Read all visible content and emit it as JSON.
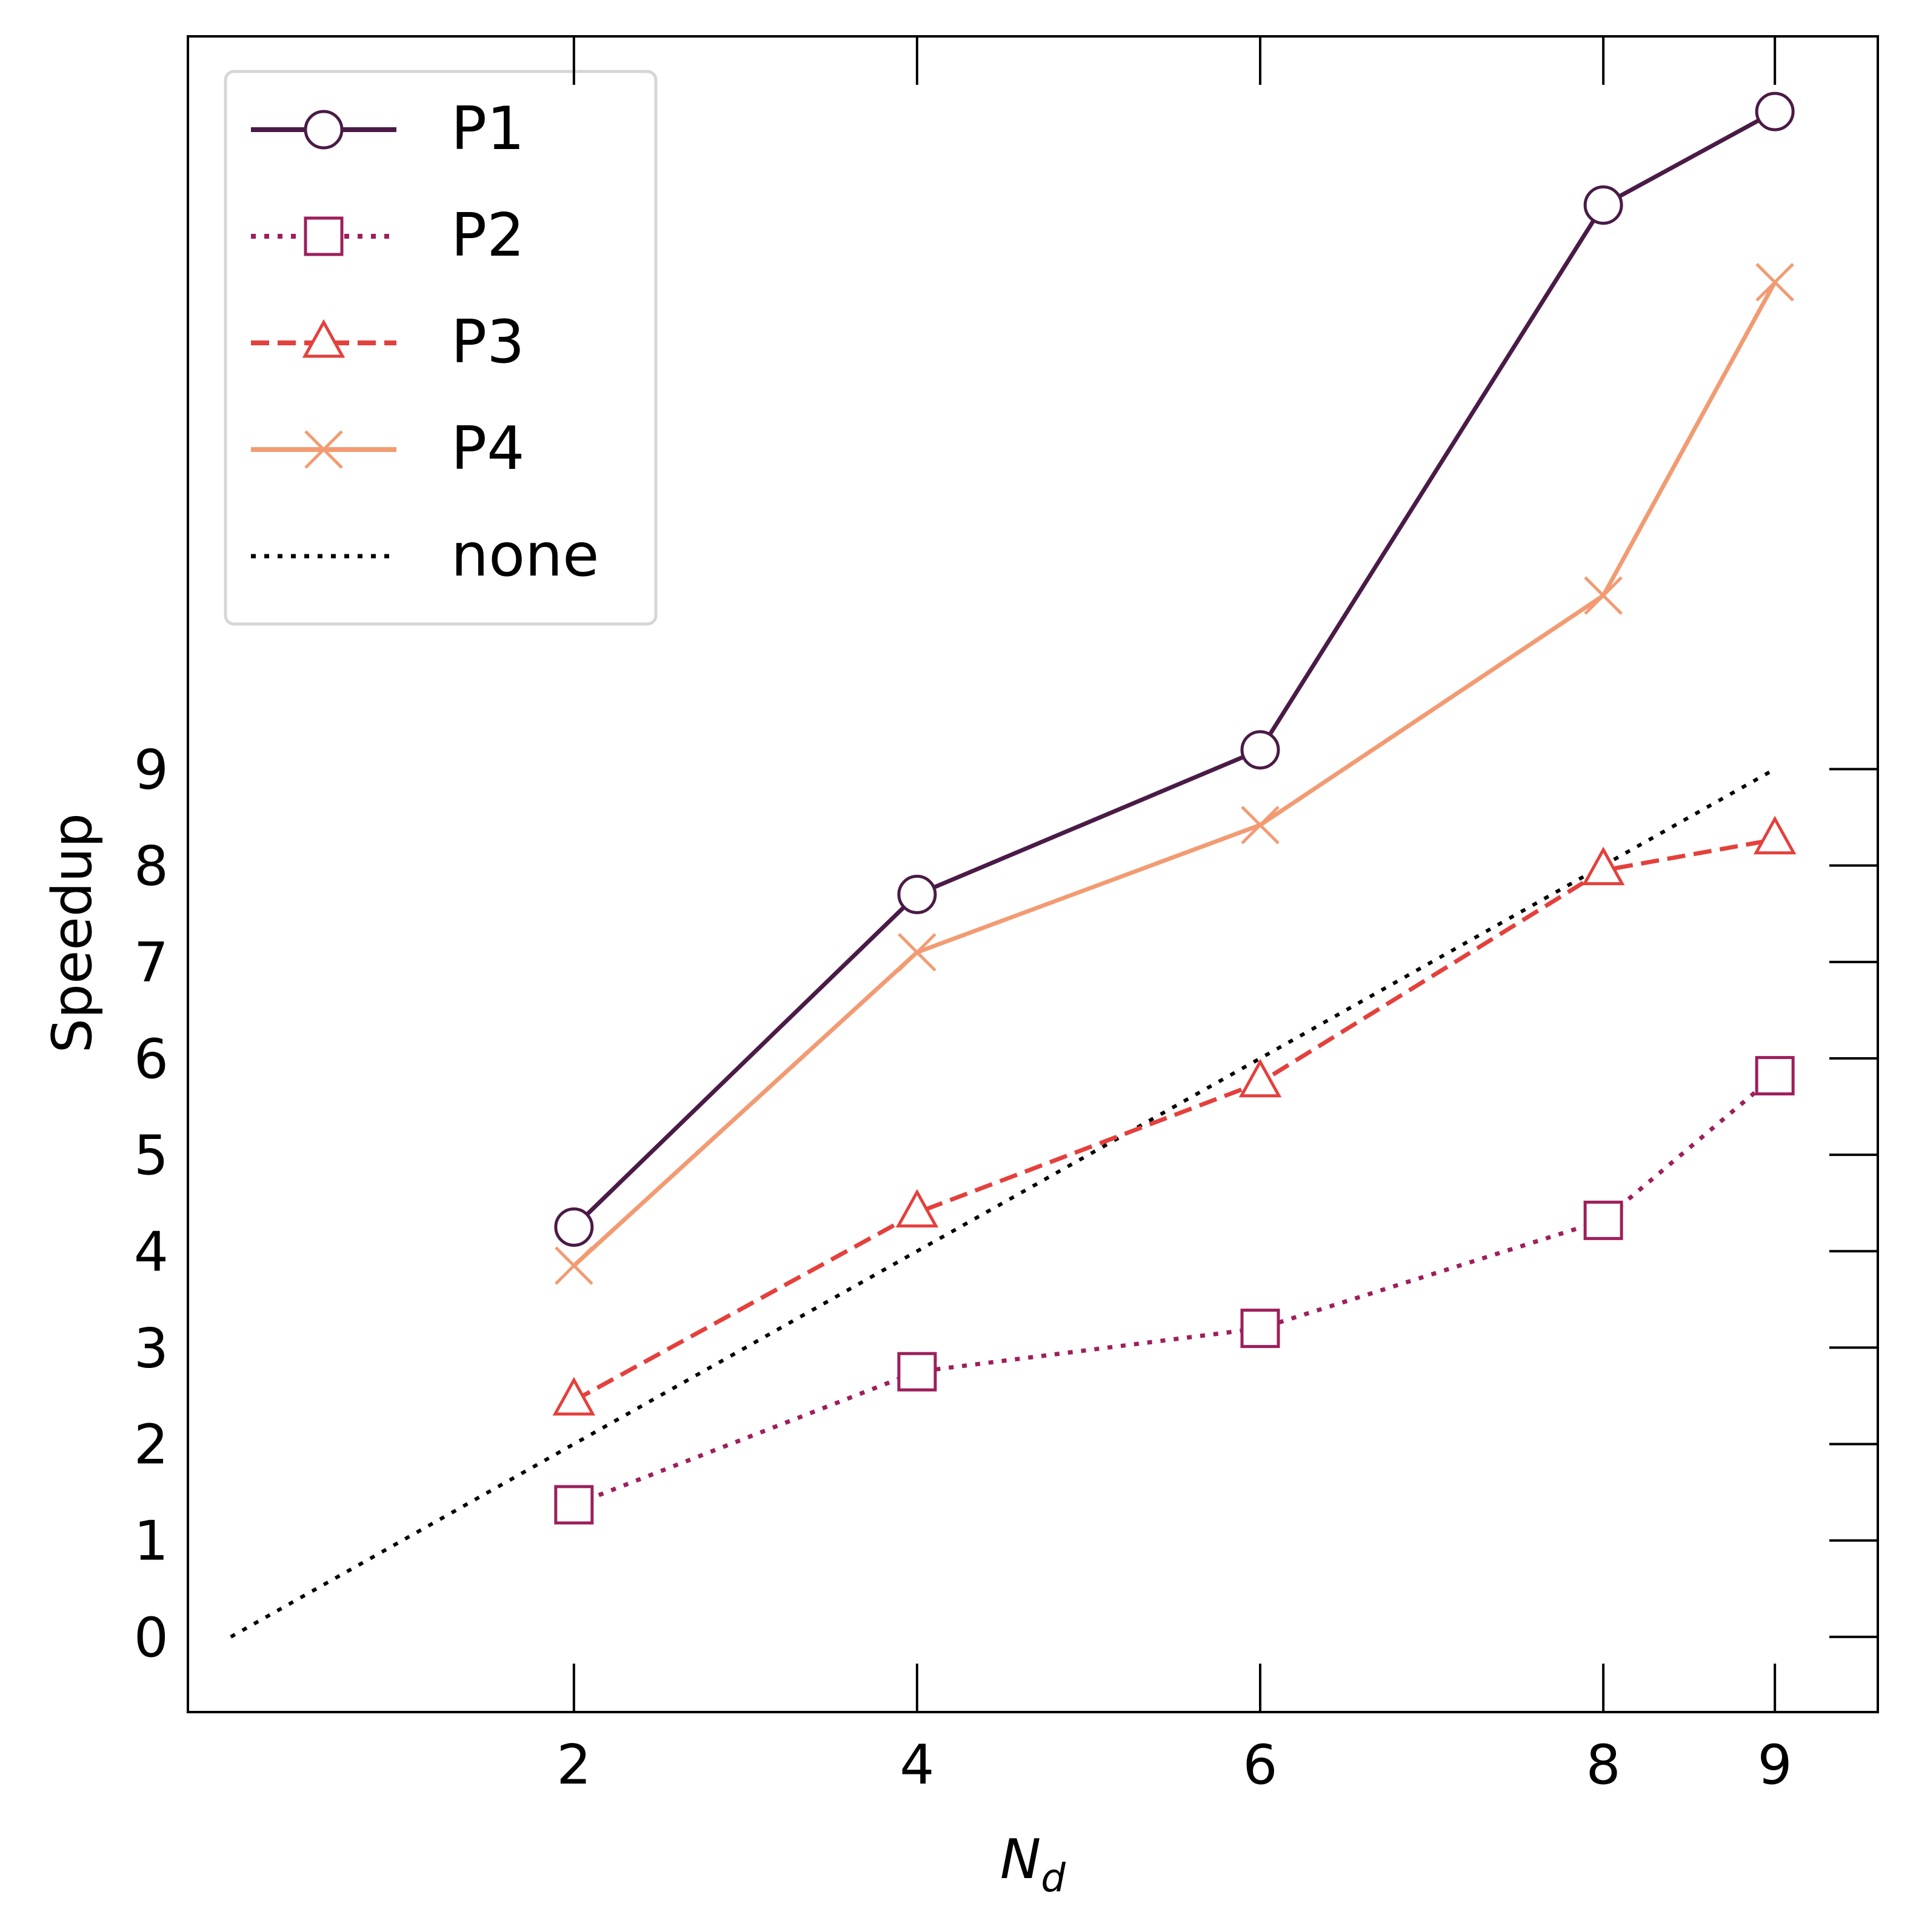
{
  "chart_data": {
    "type": "line",
    "xlabel": "N",
    "xlabel_subscript": "d",
    "ylabel": "Speedup",
    "xlim": [
      -0.25,
      9.6
    ],
    "ylim": [
      -0.78,
      16.6
    ],
    "x_ticks": [
      2,
      4,
      6,
      8,
      9
    ],
    "y_ticks": [
      0,
      1,
      2,
      3,
      4,
      5,
      6,
      7,
      8,
      9
    ],
    "grid": false,
    "legend_position": "top-left",
    "series": [
      {
        "name": "P1",
        "x": [
          2,
          4,
          6,
          8,
          9
        ],
        "values": [
          4.25,
          7.7,
          9.2,
          14.85,
          15.82
        ],
        "color": "#4a1b47",
        "linestyle": "solid",
        "marker": "circle"
      },
      {
        "name": "P2",
        "x": [
          2,
          4,
          6,
          8,
          9
        ],
        "values": [
          1.37,
          2.75,
          3.2,
          4.32,
          5.82
        ],
        "color": "#9d1f5c",
        "linestyle": "dotted",
        "marker": "square"
      },
      {
        "name": "P3",
        "x": [
          2,
          4,
          6,
          8,
          9
        ],
        "values": [
          2.45,
          4.4,
          5.75,
          7.95,
          8.27
        ],
        "color": "#e4403c",
        "linestyle": "dashed",
        "marker": "triangle"
      },
      {
        "name": "P4",
        "x": [
          2,
          4,
          6,
          8,
          9
        ],
        "values": [
          3.85,
          7.1,
          8.42,
          10.8,
          14.05
        ],
        "color": "#f29b72",
        "linestyle": "solid",
        "marker": "x"
      },
      {
        "name": "none",
        "x": [
          0,
          2,
          4,
          6,
          8,
          9
        ],
        "values": [
          0,
          2,
          4,
          6,
          8,
          9
        ],
        "color": "#000000",
        "linestyle": "dotted",
        "marker": "none"
      }
    ]
  }
}
